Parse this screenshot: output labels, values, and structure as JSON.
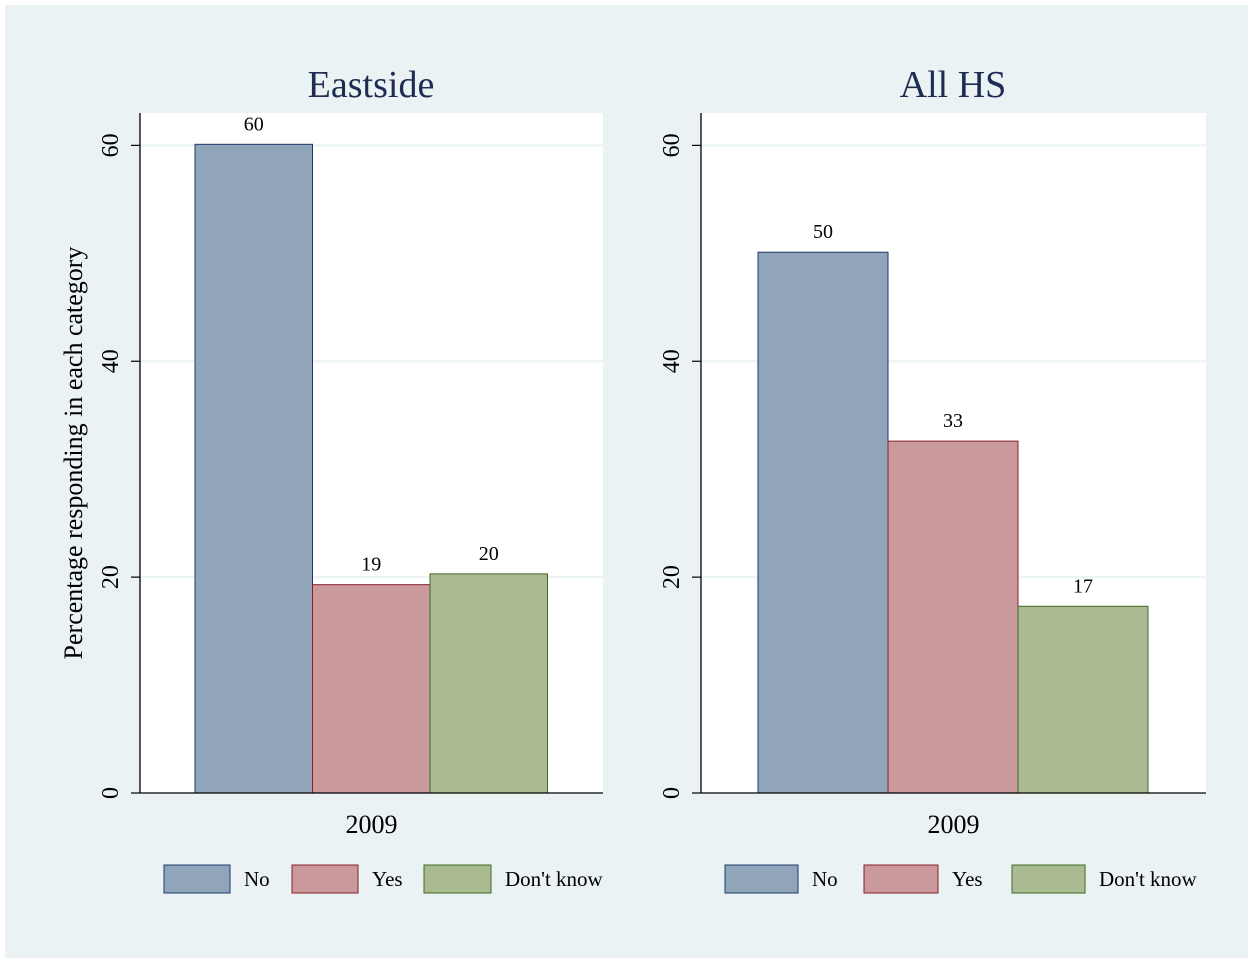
{
  "figure": {
    "background": "#eaf2f3",
    "plot_background": "#ffffff",
    "gridline_color": "#eaf2f3"
  },
  "chart_data": [
    {
      "type": "bar",
      "title": "Eastside",
      "ylabel": "Percentage responding in each category",
      "xlabel": "",
      "category": "2009",
      "ylim": [
        0,
        63
      ],
      "yticks": [
        0,
        20,
        40,
        60
      ],
      "grid": true,
      "legend_position": "bottom",
      "series": [
        {
          "name": "No",
          "value": 60.1,
          "label": "60",
          "color": "#90a4ba",
          "edge": "#1b3a6b"
        },
        {
          "name": "Yes",
          "value": 19.3,
          "label": "19",
          "color": "#c9999c",
          "edge": "#8a1d29"
        },
        {
          "name": "Don't know",
          "value": 20.3,
          "label": "20",
          "color": "#aabb94",
          "edge": "#3f6a1f"
        }
      ]
    },
    {
      "type": "bar",
      "title": "All HS",
      "ylabel": "",
      "xlabel": "",
      "category": "2009",
      "ylim": [
        0,
        63
      ],
      "yticks": [
        0,
        20,
        40,
        60
      ],
      "grid": true,
      "legend_position": "bottom",
      "series": [
        {
          "name": "No",
          "value": 50.1,
          "label": "50",
          "color": "#90a4ba",
          "edge": "#1b3a6b"
        },
        {
          "name": "Yes",
          "value": 32.6,
          "label": "33",
          "color": "#c9999c",
          "edge": "#8a1d29"
        },
        {
          "name": "Don't know",
          "value": 17.3,
          "label": "17",
          "color": "#aabb94",
          "edge": "#3f6a1f"
        }
      ]
    }
  ]
}
